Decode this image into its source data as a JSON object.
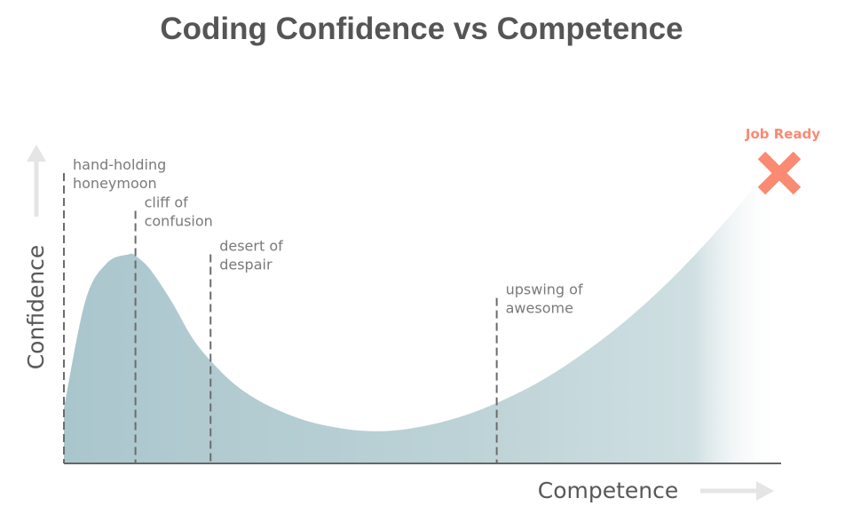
{
  "chart_data": {
    "type": "area",
    "title": "Coding Confidence vs Competence",
    "xlabel": "Competence",
    "ylabel": "Confidence",
    "xlim": [
      0,
      100
    ],
    "ylim": [
      0,
      100
    ],
    "grid": false,
    "curve": {
      "x": [
        0,
        3,
        6,
        9,
        10,
        12,
        15,
        18,
        21,
        24,
        27,
        30,
        34,
        38,
        42,
        46,
        50,
        54,
        58,
        62,
        66,
        70,
        74,
        78,
        82,
        86,
        90,
        94,
        97,
        100
      ],
      "y": [
        19,
        56,
        69,
        72,
        71.5,
        67,
        56,
        43,
        34,
        27,
        22,
        18.3,
        14.6,
        12.4,
        11.2,
        11.3,
        12.7,
        15,
        18.3,
        22.5,
        27.5,
        33.5,
        40.4,
        48.1,
        56.7,
        66.2,
        76.6,
        87.7,
        96.4,
        100
      ]
    },
    "stages": [
      {
        "name": "hand-holding",
        "name2": "honeymoon",
        "x": 0,
        "top": 100
      },
      {
        "name": "cliff of",
        "name2": "confusion",
        "x": 10,
        "top": 87
      },
      {
        "name": "desert of",
        "name2": "despair",
        "x": 20.5,
        "top": 72
      },
      {
        "name": "upswing of",
        "name2": "awesome",
        "x": 60.5,
        "top": 57
      }
    ],
    "marker": {
      "label": "Job Ready",
      "x": 100,
      "y": 100,
      "color": "#fa8a72"
    },
    "colors": {
      "fill": "#adc8ce",
      "title": "#555555",
      "text": "#7a7a7a",
      "axis": "#666666",
      "arrow": "#e5e5e5",
      "dash": "#6c6c6c"
    }
  }
}
